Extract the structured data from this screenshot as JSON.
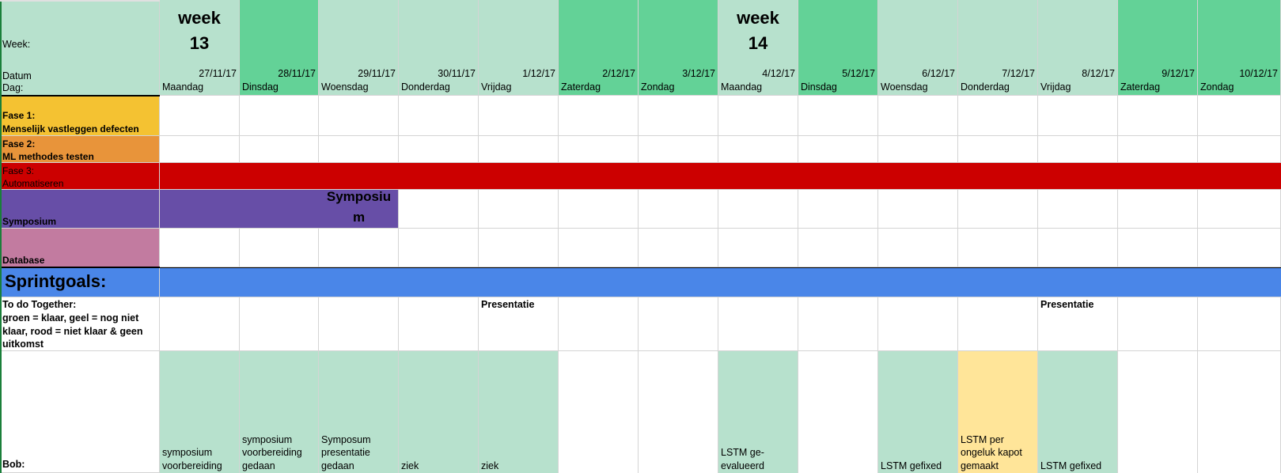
{
  "colors": {
    "light_green": "#b7e1cd",
    "dark_green": "#63d297",
    "fase1": "#f4c232",
    "fase2": "#e8943a",
    "fase3": "#cc0000",
    "symposium": "#674ea7",
    "database": "#c27ba0",
    "sprint": "#4a86e8",
    "yellow_task": "#ffe599"
  },
  "header": {
    "week_label": "Week:",
    "datum_label": "Datum",
    "dag_label": "Dag:",
    "weeks": [
      {
        "line1": "week",
        "line2": "13",
        "col": 0
      },
      {
        "line1": "week",
        "line2": "14",
        "col": 7
      }
    ],
    "days": [
      {
        "date": "27/11/17",
        "day": "Maandag",
        "color": "light_green"
      },
      {
        "date": "28/11/17",
        "day": "Dinsdag",
        "color": "dark_green"
      },
      {
        "date": "29/11/17",
        "day": "Woensdag",
        "color": "light_green"
      },
      {
        "date": "30/11/17",
        "day": "Donderdag",
        "color": "light_green"
      },
      {
        "date": "1/12/17",
        "day": "Vrijdag",
        "color": "light_green"
      },
      {
        "date": "2/12/17",
        "day": "Zaterdag",
        "color": "dark_green"
      },
      {
        "date": "3/12/17",
        "day": "Zondag",
        "color": "dark_green"
      },
      {
        "date": "4/12/17",
        "day": "Maandag",
        "color": "light_green"
      },
      {
        "date": "5/12/17",
        "day": "Dinsdag",
        "color": "dark_green"
      },
      {
        "date": "6/12/17",
        "day": "Woensdag",
        "color": "light_green"
      },
      {
        "date": "7/12/17",
        "day": "Donderdag",
        "color": "light_green"
      },
      {
        "date": "8/12/17",
        "day": "Vrijdag",
        "color": "light_green"
      },
      {
        "date": "9/12/17",
        "day": "Zaterdag",
        "color": "dark_green"
      },
      {
        "date": "10/12/17",
        "day": "Zondag",
        "color": "dark_green"
      }
    ]
  },
  "phases": [
    {
      "label_line1": "Fase 1:",
      "label_line2": "Menselijk vastleggen defecten",
      "color": "fase1"
    },
    {
      "label_line1": "Fase 2:",
      "label_line2": "ML methodes testen",
      "color": "fase2"
    },
    {
      "label_line1": "Fase 3:",
      "label_line2": "Automatiseren",
      "color": "fase3"
    }
  ],
  "symposium": {
    "label": "Symposium",
    "bar_text_line1": "Symposiu",
    "bar_text_line2": "m"
  },
  "database": {
    "label": "Database"
  },
  "sprint": {
    "label": "Sprintgoals:"
  },
  "todo": {
    "label_lines": [
      "To do Together:",
      "groen = klaar, geel = nog niet",
      "klaar, rood = niet klaar & geen",
      "uitkomst"
    ],
    "cells": [
      "",
      "",
      "",
      "",
      "Presentatie",
      "",
      "",
      "",
      "",
      "",
      "",
      "Presentatie",
      "",
      ""
    ]
  },
  "bob": {
    "label": "Bob:",
    "cells": [
      {
        "text": "symposium\nvoorbereiding",
        "color": "light_green"
      },
      {
        "text": "symposium\nvoorbereiding\ngedaan",
        "color": "light_green"
      },
      {
        "text": "Symposum\npresentatie\ngedaan",
        "color": "light_green"
      },
      {
        "text": "ziek",
        "color": "light_green"
      },
      {
        "text": "ziek",
        "color": "light_green"
      },
      {
        "text": "",
        "color": ""
      },
      {
        "text": "",
        "color": ""
      },
      {
        "text": "LSTM ge-\nevalueerd",
        "color": "light_green"
      },
      {
        "text": "",
        "color": ""
      },
      {
        "text": "LSTM gefixed",
        "color": "light_green"
      },
      {
        "text": "LSTM per\nongeluk kapot\ngemaakt",
        "color": "yellow_task"
      },
      {
        "text": "LSTM gefixed",
        "color": "light_green"
      },
      {
        "text": "",
        "color": ""
      },
      {
        "text": "",
        "color": ""
      }
    ]
  }
}
